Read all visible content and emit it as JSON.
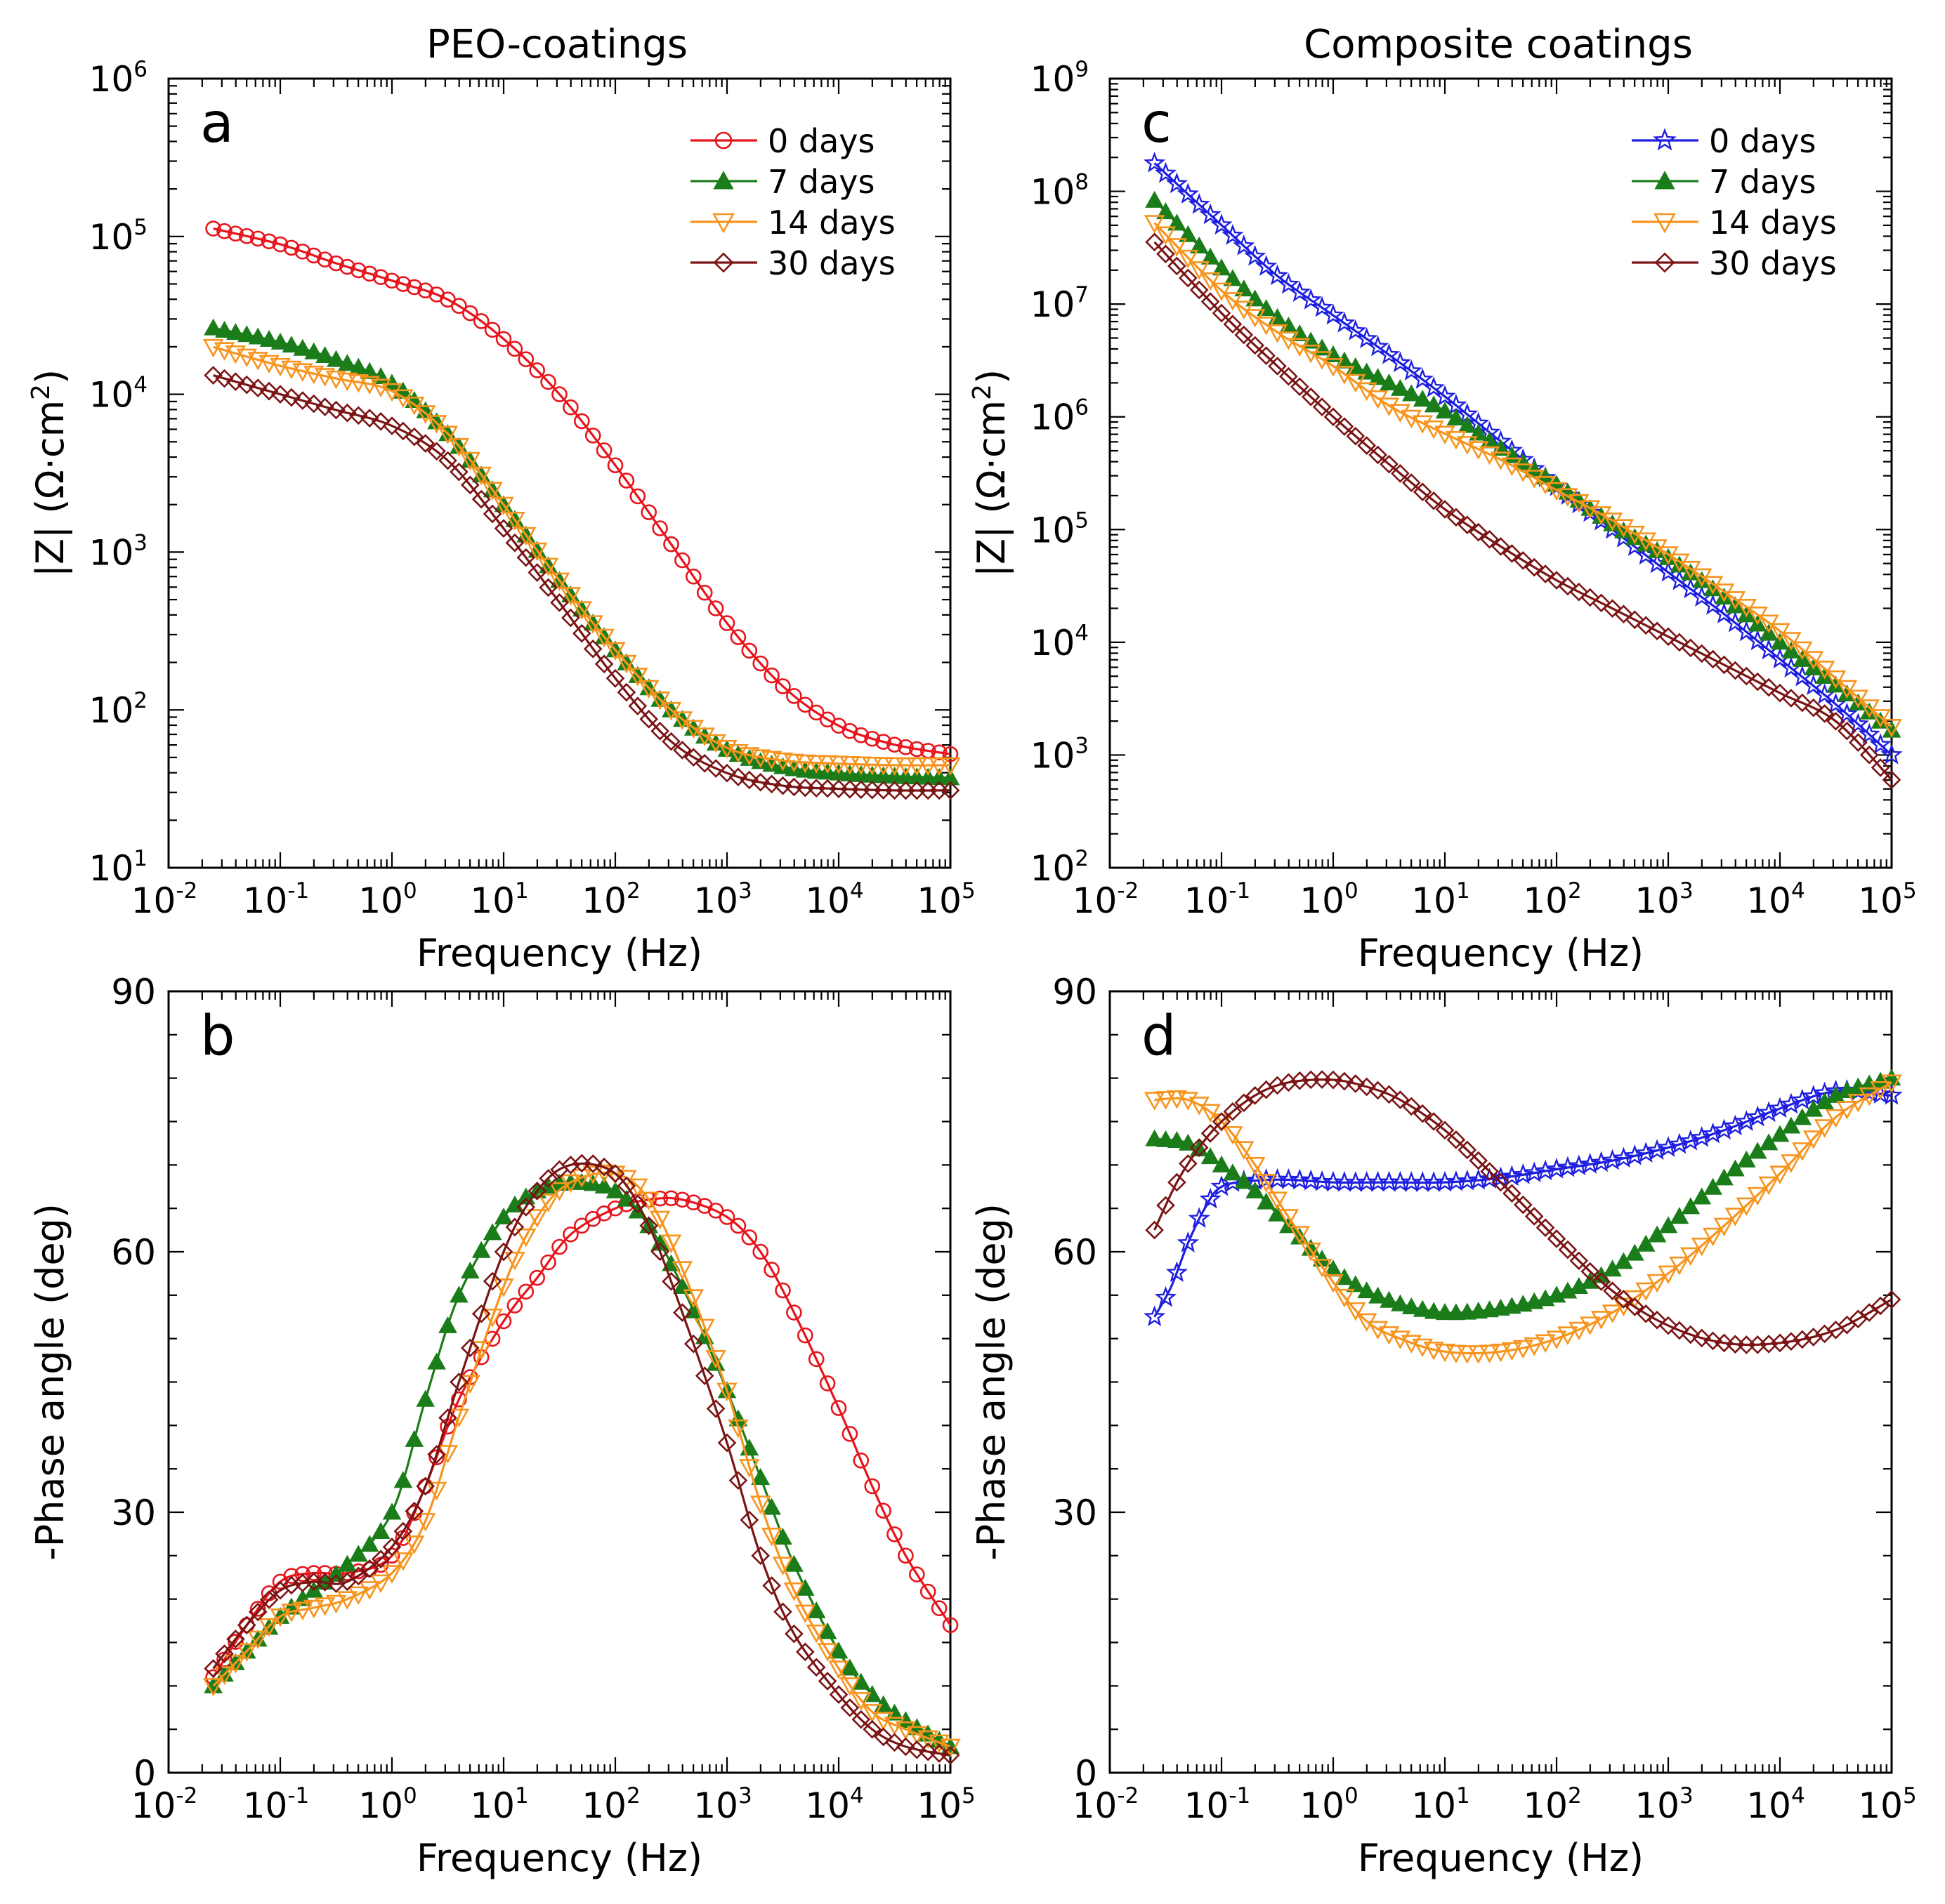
{
  "figure": {
    "col_titles": [
      "PEO-coatings",
      "Composite coatings"
    ]
  },
  "chart_data": [
    {
      "panel": "a",
      "type": "line",
      "title": "PEO-coatings",
      "xlabel": "Frequency (Hz)",
      "ylabel": "|Z| (Ω·cm²)",
      "xscale": "log",
      "yscale": "log",
      "xlim_exp": [
        -2,
        5
      ],
      "ylim_exp": [
        1,
        6
      ],
      "x_tick_labels": [
        "10-2",
        "10-1",
        "100",
        "101",
        "102",
        "103",
        "104",
        "105"
      ],
      "y_tick_labels": [
        "101",
        "102",
        "103",
        "104",
        "105",
        "106"
      ],
      "legend_position": "top-right",
      "series": [
        {
          "name": "0 days",
          "color": "#e8141b",
          "marker": "circle-open",
          "x_exp": [
            -1.6,
            -1.0,
            -0.5,
            0.0,
            0.5,
            1.0,
            1.5,
            2.0,
            2.5,
            3.0,
            3.5,
            4.0,
            4.5,
            5.0
          ],
          "y_exp": [
            5.05,
            4.95,
            4.83,
            4.72,
            4.6,
            4.35,
            4.0,
            3.55,
            3.05,
            2.55,
            2.15,
            1.9,
            1.78,
            1.72
          ]
        },
        {
          "name": "7 days",
          "color": "#1a7d1a",
          "marker": "triangle-up-filled",
          "x_exp": [
            -1.6,
            -1.0,
            -0.5,
            0.0,
            0.5,
            1.0,
            1.5,
            2.0,
            2.5,
            3.0,
            3.5,
            4.0,
            4.5,
            5.0
          ],
          "y_exp": [
            4.42,
            4.33,
            4.22,
            4.07,
            3.75,
            3.3,
            2.82,
            2.38,
            2.0,
            1.75,
            1.64,
            1.6,
            1.58,
            1.57
          ]
        },
        {
          "name": "14 days",
          "color": "#f7941d",
          "marker": "triangle-down-open",
          "x_exp": [
            -1.6,
            -1.0,
            -0.5,
            0.0,
            0.5,
            1.0,
            1.5,
            2.0,
            2.5,
            3.0,
            3.5,
            4.0,
            4.5,
            5.0
          ],
          "y_exp": [
            4.3,
            4.18,
            4.1,
            4.02,
            3.75,
            3.3,
            2.82,
            2.38,
            2.0,
            1.76,
            1.68,
            1.66,
            1.65,
            1.65
          ]
        },
        {
          "name": "30 days",
          "color": "#7b1414",
          "marker": "diamond-open",
          "x_exp": [
            -1.6,
            -1.0,
            -0.5,
            0.0,
            0.5,
            1.0,
            1.5,
            2.0,
            2.5,
            3.0,
            3.5,
            4.0,
            4.5,
            5.0
          ],
          "y_exp": [
            4.12,
            4.0,
            3.9,
            3.8,
            3.58,
            3.15,
            2.68,
            2.2,
            1.8,
            1.6,
            1.52,
            1.5,
            1.49,
            1.49
          ]
        }
      ]
    },
    {
      "panel": "c",
      "type": "line",
      "title": "Composite coatings",
      "xlabel": "Frequency (Hz)",
      "ylabel": "|Z| (Ω·cm²)",
      "xscale": "log",
      "yscale": "log",
      "xlim_exp": [
        -2,
        5
      ],
      "ylim_exp": [
        2,
        9
      ],
      "x_tick_labels": [
        "10-2",
        "10-1",
        "100",
        "101",
        "102",
        "103",
        "104",
        "105"
      ],
      "y_tick_labels": [
        "102",
        "103",
        "104",
        "105",
        "106",
        "107",
        "108",
        "109"
      ],
      "legend_position": "top-right",
      "series": [
        {
          "name": "0 days",
          "color": "#1f1fe0",
          "marker": "star-open",
          "x_exp": [
            -1.6,
            -1.0,
            -0.5,
            0.0,
            0.5,
            1.0,
            1.5,
            2.0,
            2.5,
            3.0,
            3.5,
            4.0,
            4.5,
            5.0
          ],
          "y_exp": [
            8.25,
            7.7,
            7.25,
            6.9,
            6.55,
            6.18,
            5.78,
            5.38,
            5.0,
            4.62,
            4.25,
            3.85,
            3.45,
            3.0
          ]
        },
        {
          "name": "7 days",
          "color": "#1a7d1a",
          "marker": "triangle-up-filled",
          "x_exp": [
            -1.6,
            -1.0,
            -0.5,
            0.0,
            0.5,
            1.0,
            1.5,
            2.0,
            2.5,
            3.0,
            3.5,
            4.0,
            4.5,
            5.0
          ],
          "y_exp": [
            7.92,
            7.32,
            6.88,
            6.55,
            6.3,
            6.05,
            5.72,
            5.4,
            5.05,
            4.75,
            4.4,
            4.0,
            3.62,
            3.22
          ]
        },
        {
          "name": "14 days",
          "color": "#f7941d",
          "marker": "triangle-down-open",
          "x_exp": [
            -1.6,
            -1.0,
            -0.5,
            0.0,
            0.5,
            1.0,
            1.5,
            2.0,
            2.5,
            3.0,
            3.5,
            4.0,
            4.5,
            5.0
          ],
          "y_exp": [
            7.72,
            7.12,
            6.75,
            6.45,
            6.1,
            5.85,
            5.62,
            5.35,
            5.08,
            4.78,
            4.45,
            4.1,
            3.68,
            3.25
          ]
        },
        {
          "name": "30 days",
          "color": "#7b1414",
          "marker": "diamond-open",
          "x_exp": [
            -1.6,
            -1.0,
            -0.5,
            0.0,
            0.5,
            1.0,
            1.5,
            2.0,
            2.5,
            3.0,
            3.5,
            4.0,
            4.5,
            5.0
          ],
          "y_exp": [
            7.55,
            6.92,
            6.45,
            6.0,
            5.58,
            5.18,
            4.85,
            4.55,
            4.3,
            4.05,
            3.8,
            3.55,
            3.3,
            2.78
          ]
        }
      ]
    },
    {
      "panel": "b",
      "type": "line",
      "xlabel": "Frequency (Hz)",
      "ylabel": "-Phase angle (deg)",
      "xscale": "log",
      "yscale": "linear",
      "xlim_exp": [
        -2,
        5
      ],
      "ylim": [
        0,
        90
      ],
      "x_tick_labels": [
        "10-2",
        "10-1",
        "100",
        "101",
        "102",
        "103",
        "104",
        "105"
      ],
      "y_tick_labels": [
        "0",
        "30",
        "60",
        "90"
      ],
      "series": [
        {
          "name": "0 days",
          "color": "#e8141b",
          "marker": "circle-open",
          "x_exp": [
            -1.6,
            -1.3,
            -1.0,
            -0.7,
            -0.4,
            0.0,
            0.3,
            0.6,
            1.0,
            1.3,
            1.6,
            2.0,
            2.3,
            2.6,
            3.0,
            3.3,
            3.6,
            4.0,
            4.3,
            4.6,
            5.0
          ],
          "y": [
            11,
            17,
            22,
            23,
            23,
            25,
            33,
            43,
            52,
            57,
            62,
            65,
            66,
            66,
            64,
            60,
            53,
            42,
            33,
            25,
            17
          ]
        },
        {
          "name": "7 days",
          "color": "#1a7d1a",
          "marker": "triangle-up-filled",
          "x_exp": [
            -1.6,
            -1.3,
            -1.0,
            -0.7,
            -0.4,
            0.0,
            0.3,
            0.6,
            1.0,
            1.3,
            1.6,
            2.0,
            2.3,
            2.6,
            3.0,
            3.3,
            3.6,
            4.0,
            4.3,
            4.6,
            5.0
          ],
          "y": [
            10,
            14,
            18,
            21,
            24,
            30,
            43,
            55,
            64,
            67,
            68,
            67,
            63,
            56,
            44,
            34,
            24,
            14,
            9,
            6,
            3
          ]
        },
        {
          "name": "14 days",
          "color": "#f7941d",
          "marker": "triangle-down-open",
          "x_exp": [
            -1.6,
            -1.3,
            -1.0,
            -0.7,
            -0.4,
            0.0,
            0.3,
            0.6,
            1.0,
            1.3,
            1.6,
            2.0,
            2.3,
            2.6,
            3.0,
            3.3,
            3.6,
            4.0,
            4.3,
            4.6,
            5.0
          ],
          "y": [
            10,
            14,
            18,
            19,
            20,
            23,
            29,
            41,
            56,
            64,
            68,
            69,
            66,
            58,
            44,
            31,
            21,
            12,
            7,
            5,
            3
          ]
        },
        {
          "name": "30 days",
          "color": "#7b1414",
          "marker": "diamond-open",
          "x_exp": [
            -1.6,
            -1.3,
            -1.0,
            -0.7,
            -0.4,
            0.0,
            0.3,
            0.6,
            1.0,
            1.3,
            1.6,
            2.0,
            2.3,
            2.6,
            3.0,
            3.3,
            3.6,
            4.0,
            4.3,
            4.6,
            5.0
          ],
          "y": [
            12,
            17,
            21,
            22,
            22,
            26,
            33,
            45,
            60,
            67,
            70,
            69,
            63,
            53,
            38,
            25,
            16,
            9,
            5,
            3,
            2
          ]
        }
      ]
    },
    {
      "panel": "d",
      "type": "line",
      "xlabel": "Frequency (Hz)",
      "ylabel": "-Phase angle (deg)",
      "xscale": "log",
      "yscale": "linear",
      "xlim_exp": [
        -2,
        5
      ],
      "ylim": [
        0,
        90
      ],
      "x_tick_labels": [
        "10-2",
        "10-1",
        "100",
        "101",
        "102",
        "103",
        "104",
        "105"
      ],
      "y_tick_labels": [
        "0",
        "30",
        "60",
        "90"
      ],
      "series": [
        {
          "name": "0 days",
          "color": "#1f1fe0",
          "marker": "star-open",
          "x_exp": [
            -1.6,
            -1.45,
            -1.3,
            -1.15,
            -1.0,
            -0.7,
            -0.4,
            0.0,
            0.5,
            1.0,
            1.5,
            2.0,
            2.5,
            3.0,
            3.5,
            4.0,
            4.5,
            5.0
          ],
          "y": [
            52.5,
            56,
            61,
            65,
            67.5,
            68.2,
            68.3,
            68,
            68,
            68,
            68.5,
            69.5,
            70.5,
            72,
            74,
            76.5,
            78.5,
            78
          ]
        },
        {
          "name": "7 days",
          "color": "#1a7d1a",
          "marker": "triangle-up-filled",
          "x_exp": [
            -1.6,
            -1.3,
            -1.0,
            -0.7,
            -0.4,
            0.0,
            0.3,
            0.6,
            1.0,
            1.5,
            2.0,
            2.5,
            3.0,
            3.5,
            4.0,
            4.5,
            5.0
          ],
          "y": [
            73,
            72.5,
            70,
            67,
            63,
            58,
            55.5,
            54,
            53,
            53.5,
            55,
            58,
            63,
            68.5,
            73.5,
            78,
            80
          ]
        },
        {
          "name": "14 days",
          "color": "#f7941d",
          "marker": "triangle-down-open",
          "x_exp": [
            -1.6,
            -1.3,
            -1.0,
            -0.7,
            -0.4,
            0.0,
            0.3,
            0.6,
            1.0,
            1.5,
            2.0,
            2.5,
            3.0,
            3.5,
            4.0,
            4.5,
            5.0
          ],
          "y": [
            77.5,
            77.5,
            75,
            70,
            64,
            56.5,
            52,
            50,
            48.5,
            48.5,
            50,
            53,
            57.5,
            63,
            69,
            75.5,
            79.5
          ]
        },
        {
          "name": "30 days",
          "color": "#7b1414",
          "marker": "diamond-open",
          "x_exp": [
            -1.6,
            -1.4,
            -1.2,
            -1.0,
            -0.7,
            -0.4,
            0.0,
            0.3,
            0.6,
            1.0,
            1.5,
            2.0,
            2.5,
            3.0,
            3.5,
            4.0,
            4.5,
            5.0
          ],
          "y": [
            62.5,
            68,
            72,
            75,
            78,
            79.5,
            79.8,
            79,
            77.5,
            74,
            68,
            61.5,
            55.5,
            51.5,
            49.5,
            49.5,
            51,
            54.5
          ]
        }
      ]
    }
  ]
}
